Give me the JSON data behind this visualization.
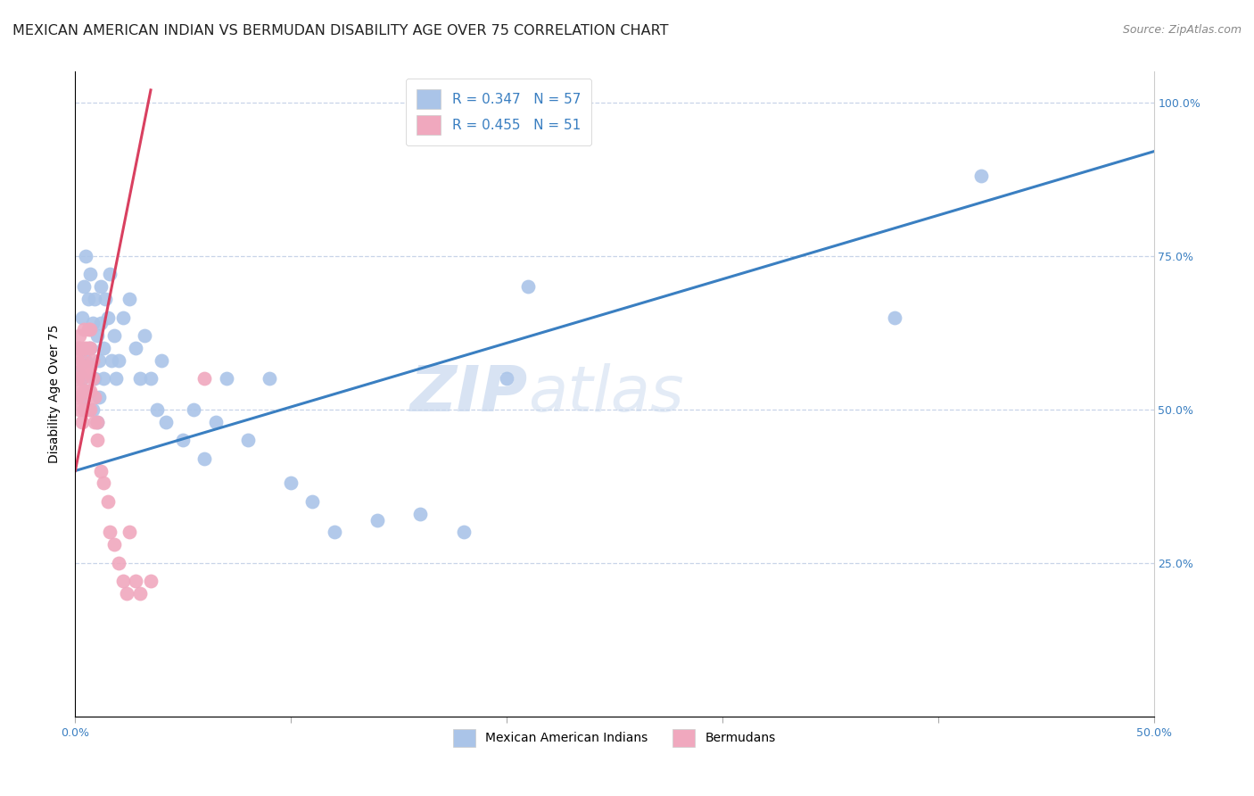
{
  "title": "MEXICAN AMERICAN INDIAN VS BERMUDAN DISABILITY AGE OVER 75 CORRELATION CHART",
  "source": "Source: ZipAtlas.com",
  "ylabel_label": "Disability Age Over 75",
  "xlim": [
    0.0,
    0.5
  ],
  "ylim": [
    0.0,
    1.05
  ],
  "legend_R1": "R = 0.347",
  "legend_N1": "N = 57",
  "legend_R2": "R = 0.455",
  "legend_N2": "N = 51",
  "color_blue": "#aac4e8",
  "color_pink": "#f0a8be",
  "line_color_blue": "#3a7fc1",
  "line_color_pink": "#d94060",
  "watermark_zip": "ZIP",
  "watermark_atlas": "atlas",
  "background_color": "#ffffff",
  "grid_color": "#c8d4e8",
  "title_fontsize": 11.5,
  "source_fontsize": 9,
  "label_fontsize": 10,
  "tick_fontsize": 9,
  "blue_x": [
    0.001,
    0.002,
    0.003,
    0.003,
    0.004,
    0.004,
    0.005,
    0.005,
    0.006,
    0.006,
    0.007,
    0.007,
    0.008,
    0.008,
    0.009,
    0.009,
    0.01,
    0.01,
    0.011,
    0.011,
    0.012,
    0.012,
    0.013,
    0.013,
    0.014,
    0.015,
    0.016,
    0.017,
    0.018,
    0.019,
    0.02,
    0.022,
    0.025,
    0.028,
    0.03,
    0.032,
    0.035,
    0.038,
    0.04,
    0.042,
    0.05,
    0.055,
    0.06,
    0.065,
    0.07,
    0.08,
    0.09,
    0.1,
    0.11,
    0.12,
    0.14,
    0.16,
    0.18,
    0.2,
    0.21,
    0.38,
    0.42
  ],
  "blue_y": [
    0.56,
    0.6,
    0.55,
    0.65,
    0.52,
    0.7,
    0.58,
    0.75,
    0.53,
    0.68,
    0.6,
    0.72,
    0.5,
    0.64,
    0.55,
    0.68,
    0.48,
    0.62,
    0.52,
    0.58,
    0.64,
    0.7,
    0.55,
    0.6,
    0.68,
    0.65,
    0.72,
    0.58,
    0.62,
    0.55,
    0.58,
    0.65,
    0.68,
    0.6,
    0.55,
    0.62,
    0.55,
    0.5,
    0.58,
    0.48,
    0.45,
    0.5,
    0.42,
    0.48,
    0.55,
    0.45,
    0.55,
    0.38,
    0.35,
    0.3,
    0.32,
    0.33,
    0.3,
    0.55,
    0.7,
    0.65,
    0.88
  ],
  "pink_x": [
    0.001,
    0.001,
    0.001,
    0.001,
    0.002,
    0.002,
    0.002,
    0.002,
    0.002,
    0.003,
    0.003,
    0.003,
    0.003,
    0.004,
    0.004,
    0.004,
    0.004,
    0.004,
    0.005,
    0.005,
    0.005,
    0.005,
    0.006,
    0.006,
    0.006,
    0.006,
    0.006,
    0.007,
    0.007,
    0.007,
    0.007,
    0.007,
    0.008,
    0.008,
    0.009,
    0.009,
    0.01,
    0.01,
    0.012,
    0.013,
    0.015,
    0.016,
    0.018,
    0.02,
    0.022,
    0.024,
    0.025,
    0.028,
    0.03,
    0.035,
    0.06
  ],
  "pink_y": [
    0.52,
    0.55,
    0.58,
    0.6,
    0.5,
    0.53,
    0.56,
    0.6,
    0.62,
    0.48,
    0.52,
    0.55,
    0.58,
    0.5,
    0.53,
    0.57,
    0.6,
    0.63,
    0.5,
    0.53,
    0.57,
    0.6,
    0.5,
    0.53,
    0.56,
    0.6,
    0.63,
    0.5,
    0.53,
    0.57,
    0.6,
    0.63,
    0.55,
    0.58,
    0.48,
    0.52,
    0.45,
    0.48,
    0.4,
    0.38,
    0.35,
    0.3,
    0.28,
    0.25,
    0.22,
    0.2,
    0.3,
    0.22,
    0.2,
    0.22,
    0.55
  ]
}
